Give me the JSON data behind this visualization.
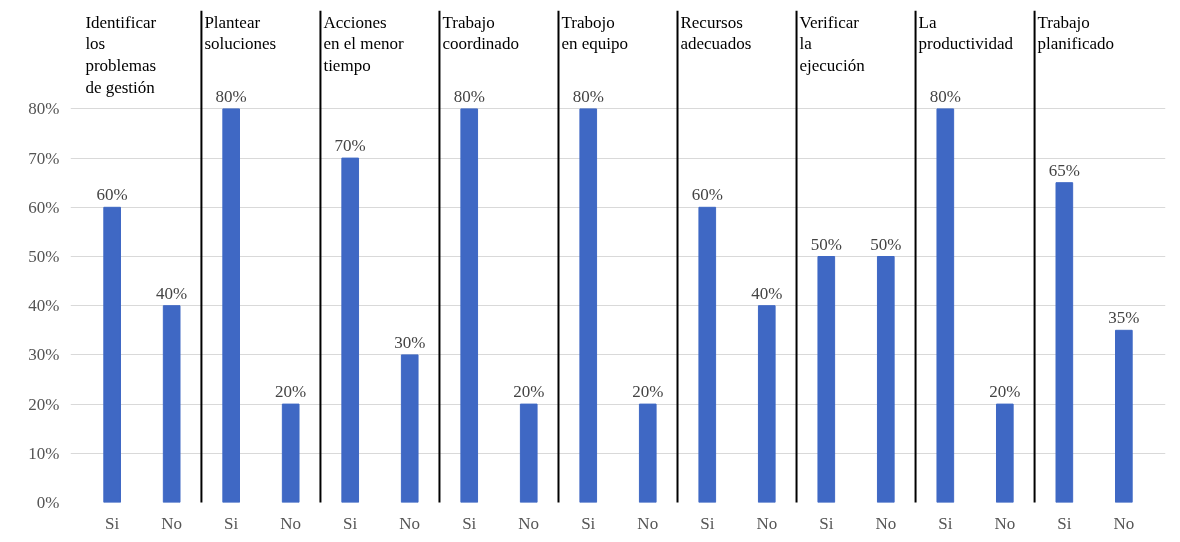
{
  "chart_data": {
    "type": "bar",
    "categories": [
      "Si",
      "No",
      "Si",
      "No",
      "Si",
      "No",
      "Si",
      "No",
      "Si",
      "No",
      "Si",
      "No",
      "Si",
      "No",
      "Si",
      "No",
      "Si",
      "No"
    ],
    "values": [
      60,
      40,
      80,
      20,
      70,
      30,
      80,
      20,
      80,
      20,
      60,
      40,
      50,
      50,
      80,
      20,
      65,
      35
    ],
    "value_labels": [
      "60%",
      "40%",
      "80%",
      "20%",
      "70%",
      "30%",
      "80%",
      "20%",
      "80%",
      "20%",
      "60%",
      "40%",
      "50%",
      "50%",
      "80%",
      "20%",
      "65%",
      "35%"
    ],
    "color": "#3f68c4",
    "ylim": [
      0,
      100
    ],
    "yticks": [
      {
        "value": 0,
        "label": "0%"
      },
      {
        "value": 10,
        "label": "10%"
      },
      {
        "value": 20,
        "label": "20%"
      },
      {
        "value": 30,
        "label": "30%"
      },
      {
        "value": 40,
        "label": "40%"
      },
      {
        "value": 50,
        "label": "50%"
      },
      {
        "value": 60,
        "label": "60%"
      },
      {
        "value": 70,
        "label": "70%"
      },
      {
        "value": 80,
        "label": "80%"
      }
    ],
    "grid": "y",
    "annotations": [
      "Identificar\nlos\nproblemas\nde gestión",
      "Plantear\nsoluciones",
      "Acciones\nen el menor\ntiempo",
      "Trabajo\ncoordinado",
      "Trabojo\nen equipo",
      "Recursos\nadecuados",
      "Verificar\nla\nejecución",
      "La\nproductividad",
      "Trabajo\nplanificado"
    ]
  }
}
